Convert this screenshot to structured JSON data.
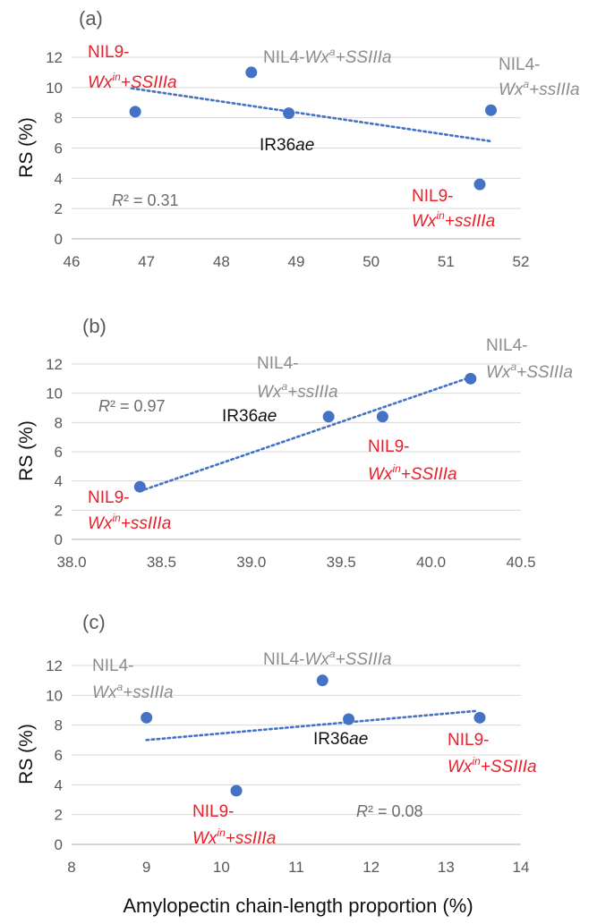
{
  "chart_data": [
    {
      "type": "scatter",
      "panel_label": "(a)",
      "ylabel": "RS (%)",
      "xlabel": "",
      "xlim": [
        46,
        52
      ],
      "ylim": [
        0,
        12
      ],
      "xticks": [
        "46",
        "47",
        "48",
        "49",
        "50",
        "51",
        "52"
      ],
      "yticks": [
        "0",
        "2",
        "4",
        "6",
        "8",
        "10",
        "12"
      ],
      "points": [
        {
          "x": 46.85,
          "y": 8.4
        },
        {
          "x": 48.4,
          "y": 11.0
        },
        {
          "x": 48.9,
          "y": 8.3
        },
        {
          "x": 51.6,
          "y": 8.5
        },
        {
          "x": 51.45,
          "y": 3.6
        }
      ],
      "trendline": {
        "x": [
          46.8,
          51.6
        ],
        "y": [
          9.95,
          6.45
        ]
      },
      "r2": "R² = 0.31",
      "grid": "horizontal",
      "labels": [
        {
          "parts": [
            "NIL9-"
          ],
          "color": "#e8202a"
        },
        {
          "parts": [
            "Wx",
            "in",
            "+SSIIIa"
          ],
          "color": "#e8202a"
        },
        {
          "parts": [
            "NIL4-",
            "Wx",
            "a",
            "+SSIIIa"
          ],
          "color": "#8c8c8c"
        },
        {
          "parts": [
            "NIL4-"
          ],
          "color": "#8c8c8c"
        },
        {
          "parts": [
            "Wx",
            "a",
            "+ssIIIa"
          ],
          "color": "#8c8c8c"
        },
        {
          "parts": [
            "IR36",
            "ae"
          ],
          "color": "#111111"
        },
        {
          "parts": [
            "NIL9-"
          ],
          "color": "#e8202a"
        },
        {
          "parts": [
            "Wx",
            "in",
            "+ssIIIa"
          ],
          "color": "#e8202a"
        }
      ]
    },
    {
      "type": "scatter",
      "panel_label": "(b)",
      "ylabel": "RS (%)",
      "xlabel": "",
      "xlim": [
        38.0,
        40.5
      ],
      "ylim": [
        0,
        12
      ],
      "xticks": [
        "38.0",
        "38.5",
        "39.0",
        "39.5",
        "40.0",
        "40.5"
      ],
      "yticks": [
        "0",
        "2",
        "4",
        "6",
        "8",
        "10",
        "12"
      ],
      "points": [
        {
          "x": 38.38,
          "y": 3.6
        },
        {
          "x": 39.43,
          "y": 8.4
        },
        {
          "x": 39.73,
          "y": 8.4
        },
        {
          "x": 40.22,
          "y": 11.0
        }
      ],
      "trendline": {
        "x": [
          38.38,
          40.22
        ],
        "y": [
          3.3,
          11.1
        ]
      },
      "r2": "R² = 0.97",
      "grid": "horizontal",
      "labels": [
        {
          "parts": [
            "NIL4-"
          ],
          "color": "#8c8c8c"
        },
        {
          "parts": [
            "Wx",
            "a",
            "+SSIIIa"
          ],
          "color": "#8c8c8c"
        },
        {
          "parts": [
            "NIL4-"
          ],
          "color": "#8c8c8c"
        },
        {
          "parts": [
            "Wx",
            "a",
            "+ssIIIa"
          ],
          "color": "#8c8c8c"
        },
        {
          "parts": [
            "IR36",
            "ae"
          ],
          "color": "#111111"
        },
        {
          "parts": [
            "NIL9-"
          ],
          "color": "#e8202a"
        },
        {
          "parts": [
            "Wx",
            "in",
            "+SSIIIa"
          ],
          "color": "#e8202a"
        },
        {
          "parts": [
            "NIL9-"
          ],
          "color": "#e8202a"
        },
        {
          "parts": [
            "Wx",
            "in",
            "+ssIIIa"
          ],
          "color": "#e8202a"
        }
      ]
    },
    {
      "type": "scatter",
      "panel_label": "(c)",
      "ylabel": "RS (%)",
      "xlabel": "Amylopectin chain-length proportion (%)",
      "xlim": [
        8,
        14
      ],
      "ylim": [
        0,
        12
      ],
      "xticks": [
        "8",
        "9",
        "10",
        "11",
        "12",
        "13",
        "14"
      ],
      "yticks": [
        "0",
        "2",
        "4",
        "6",
        "8",
        "10",
        "12"
      ],
      "points": [
        {
          "x": 9.0,
          "y": 8.5
        },
        {
          "x": 10.2,
          "y": 3.6
        },
        {
          "x": 11.35,
          "y": 11.0
        },
        {
          "x": 11.7,
          "y": 8.4
        },
        {
          "x": 13.45,
          "y": 8.5
        }
      ],
      "trendline": {
        "x": [
          9.0,
          13.4
        ],
        "y": [
          7.0,
          8.95
        ]
      },
      "r2": "R² = 0.08",
      "grid": "horizontal",
      "labels": [
        {
          "parts": [
            "NIL4-"
          ],
          "color": "#8c8c8c"
        },
        {
          "parts": [
            "Wx",
            "a",
            "+ssIIIa"
          ],
          "color": "#8c8c8c"
        },
        {
          "parts": [
            "NIL4-",
            "Wx",
            "a",
            "+SSIIIa"
          ],
          "color": "#8c8c8c"
        },
        {
          "parts": [
            "IR36",
            "ae"
          ],
          "color": "#111111"
        },
        {
          "parts": [
            "NIL9-"
          ],
          "color": "#e8202a"
        },
        {
          "parts": [
            "Wx",
            "in",
            "+SSIIIa"
          ],
          "color": "#e8202a"
        },
        {
          "parts": [
            "NIL9-"
          ],
          "color": "#e8202a"
        },
        {
          "parts": [
            "Wx",
            "in",
            "+ssIIIa"
          ],
          "color": "#e8202a"
        }
      ]
    }
  ],
  "colors": {
    "point": "#4472c4",
    "trendline": "#4472c4",
    "grid": "#d9d9d9",
    "axis_text": "#595959",
    "r2_text": "#6d6d6d"
  }
}
